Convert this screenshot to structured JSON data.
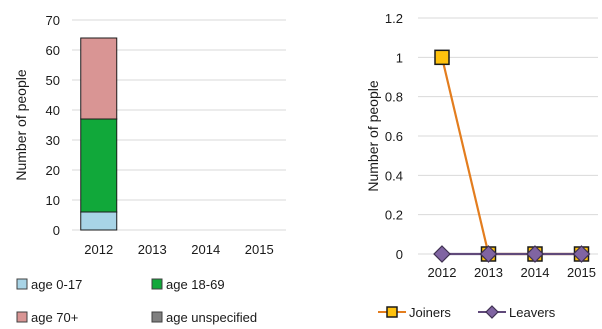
{
  "chart_data": [
    {
      "type": "bar",
      "stacked": true,
      "categories": [
        "2012",
        "2013",
        "2014",
        "2015"
      ],
      "series": [
        {
          "name": "age 0-17",
          "values": [
            6,
            0,
            0,
            0
          ],
          "color": "#a8d4e6"
        },
        {
          "name": "age 18-69",
          "values": [
            31,
            0,
            0,
            0
          ],
          "color": "#11a83a"
        },
        {
          "name": "age 70+",
          "values": [
            27,
            0,
            0,
            0
          ],
          "color": "#d99594"
        },
        {
          "name": "age unspecified",
          "values": [
            0,
            0,
            0,
            0
          ],
          "color": "#808080"
        }
      ],
      "title": "",
      "xlabel": "",
      "ylabel": "Number of people",
      "ylim": [
        0,
        70
      ],
      "yticks": [
        "0",
        "10",
        "20",
        "30",
        "40",
        "50",
        "60",
        "70"
      ],
      "grid": true,
      "legend": "bottom"
    },
    {
      "type": "line",
      "x": [
        "2012",
        "2013",
        "2014",
        "2015"
      ],
      "series": [
        {
          "name": "Joiners",
          "values": [
            1,
            0,
            0,
            0
          ],
          "color": "#e37d1e",
          "marker": "square",
          "marker_fill": "#ffc20e"
        },
        {
          "name": "Leavers",
          "values": [
            0,
            0,
            0,
            0
          ],
          "color": "#60497a",
          "marker": "diamond",
          "marker_fill": "#8064a2"
        }
      ],
      "title": "",
      "xlabel": "",
      "ylabel": "Number of people",
      "ylim": [
        0,
        1.2
      ],
      "yticks": [
        "0",
        "0.2",
        "0.4",
        "0.6",
        "0.8",
        "1",
        "1.2"
      ],
      "grid": true,
      "legend": "bottom"
    }
  ]
}
